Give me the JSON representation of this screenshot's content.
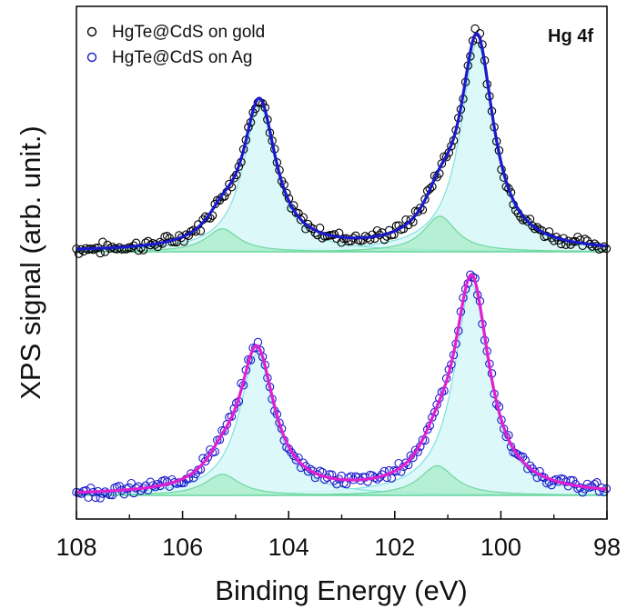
{
  "chart_data": {
    "type": "scatter",
    "xlabel": "Binding Energy (eV)",
    "ylabel": "XPS signal (arb. unit.)",
    "xlim": [
      108,
      98
    ],
    "x_reversed": true,
    "x_ticks": [
      108,
      106,
      104,
      102,
      100,
      98
    ],
    "annotation": "Hg 4f",
    "legend_position": "top-left",
    "colors": {
      "gold_markers": "#000000",
      "ag_markers": "#1a1acc",
      "gold_fit": "#1a1acc",
      "ag_fit": "#e020d0",
      "main_component_fill": "#d6f7f7",
      "main_component_stroke": "#7fe0e0",
      "minor_component_fill": "#a8ecc8",
      "minor_component_stroke": "#6fd8a0"
    },
    "series": [
      {
        "name": "HgTe@CdS on gold",
        "panel": "top",
        "marker": "open-circle",
        "baseline": 0.0,
        "peaks": [
          {
            "center": 100.45,
            "height": 1.0,
            "fwhm": 0.75,
            "component": "main"
          },
          {
            "center": 104.55,
            "height": 0.7,
            "fwhm": 0.75,
            "component": "main"
          },
          {
            "center": 101.15,
            "height": 0.17,
            "fwhm": 0.75,
            "component": "minor"
          },
          {
            "center": 105.25,
            "height": 0.11,
            "fwhm": 0.75,
            "component": "minor"
          }
        ]
      },
      {
        "name": "HgTe@CdS on Ag",
        "panel": "bottom",
        "marker": "open-circle",
        "baseline": 0.0,
        "peaks": [
          {
            "center": 100.55,
            "height": 1.0,
            "fwhm": 0.8,
            "component": "main"
          },
          {
            "center": 104.6,
            "height": 0.67,
            "fwhm": 0.8,
            "component": "main"
          },
          {
            "center": 101.2,
            "height": 0.14,
            "fwhm": 0.8,
            "component": "minor"
          },
          {
            "center": 105.25,
            "height": 0.1,
            "fwhm": 0.8,
            "component": "minor"
          }
        ]
      }
    ]
  }
}
